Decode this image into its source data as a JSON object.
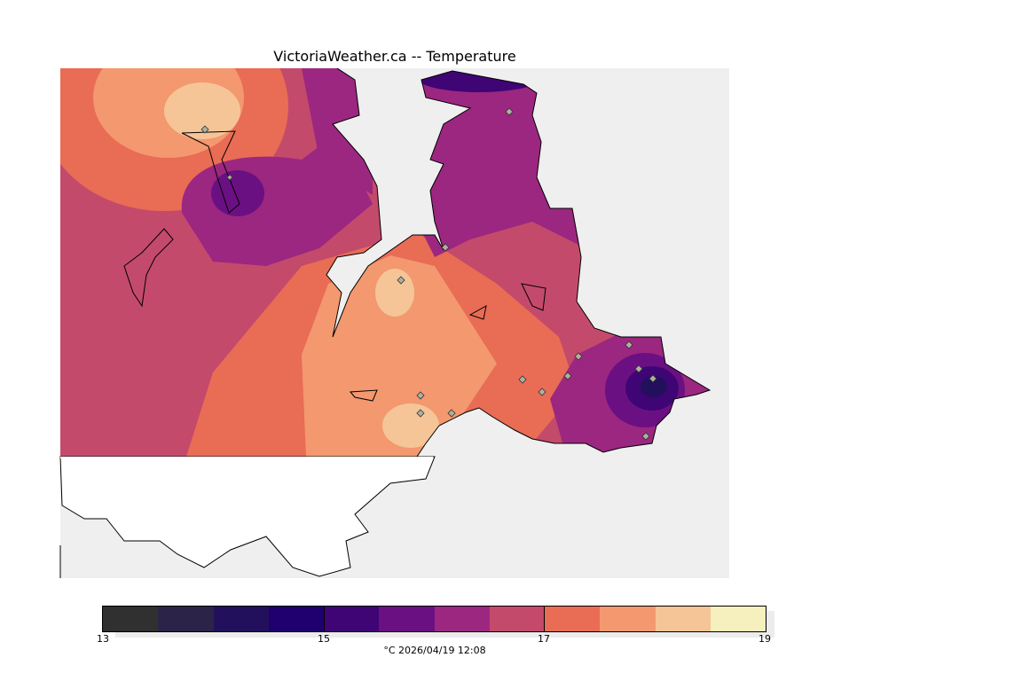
{
  "title": "VictoriaWeather.ca -- Temperature",
  "caption": "°C  2026/04/19 12:08",
  "chart_data": {
    "type": "heatmap",
    "title": "VictoriaWeather.ca -- Temperature",
    "units": "°C",
    "timestamp": "2026/04/19 12:08",
    "colorbar": {
      "range": [
        13,
        19
      ],
      "ticks": [
        "13",
        "15",
        "17",
        "19"
      ],
      "levels": [
        13,
        13.5,
        14,
        14.5,
        15,
        15.5,
        16,
        16.5,
        17,
        17.5,
        18,
        18.5,
        19
      ],
      "colors": [
        "#303030",
        "#2c2349",
        "#22105c",
        "#1f006e",
        "#3f0574",
        "#6b1083",
        "#9c2780",
        "#c44a6b",
        "#e96c55",
        "#f3986f",
        "#f5c597",
        "#f6efbe"
      ]
    }
  },
  "colors": {
    "water": "#efefef",
    "land_outline": "#000000",
    "station": "#a0a0a0"
  }
}
